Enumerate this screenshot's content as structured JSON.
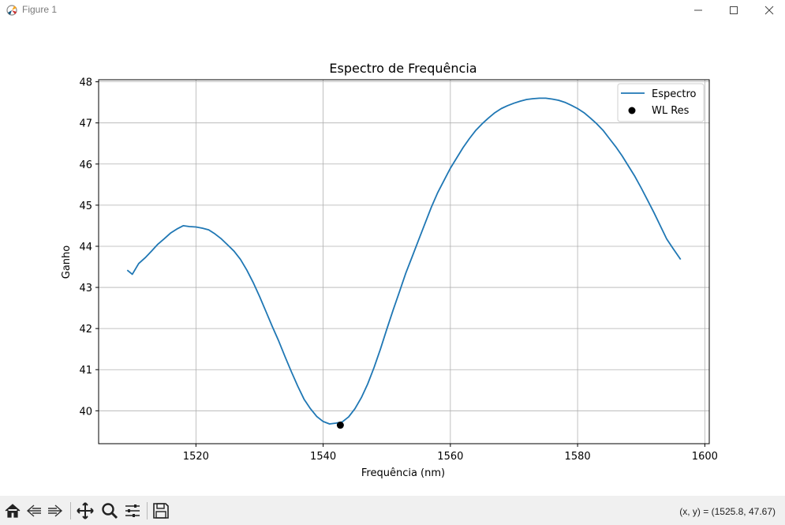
{
  "window": {
    "title": "Figure 1",
    "minimize_icon": "minimize-icon",
    "maximize_icon": "maximize-icon",
    "close_icon": "close-icon"
  },
  "toolbar": {
    "buttons": [
      "home-icon",
      "back-arrow-icon",
      "forward-arrow-icon",
      "pan-icon",
      "zoom-icon",
      "configure-subplots-icon",
      "save-icon"
    ],
    "coords_text": "(x, y) = (1525.8, 47.67)"
  },
  "chart_data": {
    "type": "line",
    "title": "Espectro de Frequência",
    "xlabel": "Frequência (nm)",
    "ylabel": "Ganho",
    "xlim": [
      1504.7,
      1600.7
    ],
    "ylim": [
      39.2,
      48.05
    ],
    "xticks": [
      1520,
      1540,
      1560,
      1580,
      1600
    ],
    "yticks": [
      40,
      41,
      42,
      43,
      44,
      45,
      46,
      47,
      48
    ],
    "grid": true,
    "legend_position": "upper right",
    "series": [
      {
        "name": "Espectro",
        "color": "#1f77b4",
        "x": [
          1509.2,
          1510,
          1511,
          1512,
          1513,
          1514,
          1515,
          1516,
          1517,
          1518,
          1519,
          1520,
          1521,
          1522,
          1523,
          1524,
          1525,
          1526,
          1527,
          1528,
          1529,
          1530,
          1531,
          1532,
          1533,
          1534,
          1535,
          1536,
          1537,
          1538,
          1539,
          1540,
          1541,
          1542,
          1543,
          1544,
          1545,
          1546,
          1547,
          1548,
          1549,
          1550,
          1551,
          1552,
          1553,
          1554,
          1555,
          1556,
          1557,
          1558,
          1559,
          1560,
          1561,
          1562,
          1563,
          1564,
          1565,
          1566,
          1567,
          1568,
          1569,
          1570,
          1571,
          1572,
          1573,
          1574,
          1575,
          1576,
          1577,
          1578,
          1579,
          1580,
          1581,
          1582,
          1583,
          1584,
          1585,
          1586,
          1587,
          1588,
          1589,
          1590,
          1591,
          1592,
          1593,
          1594,
          1595,
          1596.2
        ],
        "y": [
          43.42,
          43.32,
          43.58,
          43.72,
          43.88,
          44.05,
          44.18,
          44.32,
          44.42,
          44.5,
          44.48,
          44.47,
          44.44,
          44.4,
          44.3,
          44.18,
          44.03,
          43.88,
          43.68,
          43.42,
          43.12,
          42.78,
          42.42,
          42.05,
          41.7,
          41.32,
          40.95,
          40.6,
          40.28,
          40.05,
          39.86,
          39.74,
          39.68,
          39.7,
          39.73,
          39.85,
          40.05,
          40.32,
          40.65,
          41.05,
          41.5,
          41.98,
          42.45,
          42.9,
          43.35,
          43.75,
          44.15,
          44.55,
          44.95,
          45.3,
          45.6,
          45.9,
          46.15,
          46.4,
          46.62,
          46.82,
          46.98,
          47.12,
          47.25,
          47.35,
          47.42,
          47.48,
          47.53,
          47.57,
          47.59,
          47.6,
          47.6,
          47.58,
          47.55,
          47.5,
          47.43,
          47.35,
          47.25,
          47.12,
          46.98,
          46.82,
          46.62,
          46.42,
          46.2,
          45.95,
          45.7,
          45.42,
          45.12,
          44.82,
          44.5,
          44.18,
          43.95,
          43.68
        ]
      },
      {
        "name": "WL Res",
        "type": "scatter",
        "color": "#000000",
        "x": [
          1542.7
        ],
        "y": [
          39.65
        ]
      }
    ]
  }
}
